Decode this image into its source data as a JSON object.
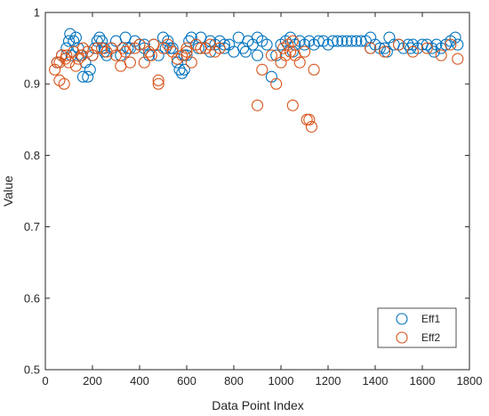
{
  "chart_data": {
    "type": "scatter",
    "title": "",
    "xlabel": "Data Point Index",
    "ylabel": "Value",
    "xlim": [
      0,
      1800
    ],
    "ylim": [
      0.5,
      1
    ],
    "xticks": [
      0,
      200,
      400,
      600,
      800,
      1000,
      1200,
      1400,
      1600,
      1800
    ],
    "yticks": [
      0.5,
      0.6,
      0.7,
      0.8,
      0.9,
      1
    ],
    "xtick_labels": [
      "0",
      "200",
      "400",
      "600",
      "800",
      "1000",
      "1200",
      "1400",
      "1600",
      "1800"
    ],
    "ytick_labels": [
      "0.5",
      "0.6",
      "0.7",
      "0.8",
      "0.9",
      "1"
    ],
    "grid": false,
    "legend": "bottom-right",
    "series": [
      {
        "name": "Eff1",
        "color": "#0072BD",
        "marker": "open-circle",
        "x": [
          50,
          70,
          90,
          100,
          105,
          110,
          120,
          140,
          150,
          160,
          170,
          180,
          190,
          200,
          210,
          220,
          230,
          240,
          250,
          260,
          280,
          300,
          320,
          340,
          360,
          380,
          400,
          420,
          440,
          460,
          480,
          500,
          510,
          520,
          540,
          560,
          570,
          580,
          590,
          600,
          610,
          620,
          640,
          660,
          680,
          700,
          720,
          740,
          760,
          780,
          800,
          820,
          840,
          860,
          880,
          900,
          920,
          940,
          960,
          980,
          1000,
          1020,
          1040,
          1060,
          1080,
          1100,
          1120,
          1140,
          1160,
          1180,
          1200,
          1220,
          1240,
          1260,
          1280,
          1300,
          1320,
          1340,
          1360,
          1380,
          1400,
          1420,
          1440,
          1460,
          1480,
          1500,
          1520,
          1540,
          1560,
          1580,
          1600,
          1620,
          1640,
          1660,
          1680,
          1700,
          1720,
          1740,
          1750,
          130,
          250,
          350,
          420,
          530,
          590,
          650,
          700,
          760,
          850,
          900,
          1050,
          1380,
          1450,
          1550,
          1650
        ],
        "y": [
          0.93,
          0.94,
          0.95,
          0.96,
          0.97,
          0.94,
          0.96,
          0.95,
          0.94,
          0.91,
          0.93,
          0.91,
          0.92,
          0.94,
          0.95,
          0.96,
          0.965,
          0.96,
          0.95,
          0.94,
          0.95,
          0.96,
          0.94,
          0.965,
          0.95,
          0.96,
          0.955,
          0.95,
          0.94,
          0.955,
          0.94,
          0.965,
          0.95,
          0.96,
          0.95,
          0.93,
          0.92,
          0.915,
          0.92,
          0.94,
          0.96,
          0.965,
          0.955,
          0.965,
          0.95,
          0.96,
          0.955,
          0.96,
          0.95,
          0.955,
          0.945,
          0.965,
          0.95,
          0.96,
          0.955,
          0.965,
          0.96,
          0.955,
          0.91,
          0.94,
          0.955,
          0.96,
          0.965,
          0.955,
          0.96,
          0.955,
          0.96,
          0.955,
          0.96,
          0.96,
          0.955,
          0.96,
          0.96,
          0.96,
          0.96,
          0.96,
          0.96,
          0.96,
          0.96,
          0.965,
          0.955,
          0.95,
          0.95,
          0.965,
          0.955,
          0.955,
          0.95,
          0.955,
          0.955,
          0.95,
          0.955,
          0.955,
          0.95,
          0.955,
          0.95,
          0.955,
          0.96,
          0.965,
          0.955,
          0.965,
          0.945,
          0.95,
          0.955,
          0.95,
          0.94,
          0.95,
          0.945,
          0.955,
          0.945,
          0.94,
          0.945,
          0.95,
          0.945,
          0.95,
          0.945
        ]
      },
      {
        "name": "Eff2",
        "color": "#D95319",
        "marker": "open-circle",
        "x": [
          40,
          50,
          60,
          70,
          80,
          90,
          100,
          120,
          140,
          160,
          180,
          200,
          220,
          240,
          260,
          280,
          300,
          320,
          340,
          360,
          380,
          400,
          420,
          440,
          460,
          480,
          500,
          520,
          540,
          560,
          580,
          600,
          620,
          640,
          660,
          680,
          700,
          720,
          740,
          900,
          920,
          960,
          980,
          1000,
          1010,
          1020,
          1030,
          1040,
          1050,
          1060,
          1080,
          1100,
          1110,
          1120,
          1130,
          1140,
          1380,
          1440,
          1500,
          1560,
          1620,
          1680,
          1720,
          1750,
          60,
          85,
          130,
          155,
          330,
          450,
          480,
          600,
          1050
        ],
        "y": [
          0.92,
          0.93,
          0.905,
          0.94,
          0.9,
          0.94,
          0.93,
          0.945,
          0.935,
          0.95,
          0.945,
          0.94,
          0.95,
          0.95,
          0.945,
          0.95,
          0.94,
          0.925,
          0.945,
          0.93,
          0.95,
          0.955,
          0.93,
          0.945,
          0.955,
          0.905,
          0.95,
          0.955,
          0.945,
          0.935,
          0.94,
          0.945,
          0.93,
          0.955,
          0.95,
          0.95,
          0.955,
          0.945,
          0.95,
          0.87,
          0.92,
          0.94,
          0.9,
          0.93,
          0.95,
          0.94,
          0.955,
          0.945,
          0.87,
          0.94,
          0.93,
          0.945,
          0.85,
          0.85,
          0.84,
          0.92,
          0.95,
          0.945,
          0.955,
          0.945,
          0.95,
          0.94,
          0.955,
          0.935,
          0.93,
          0.935,
          0.925,
          0.94,
          0.95,
          0.94,
          0.9,
          0.95,
          0.96
        ]
      }
    ]
  }
}
